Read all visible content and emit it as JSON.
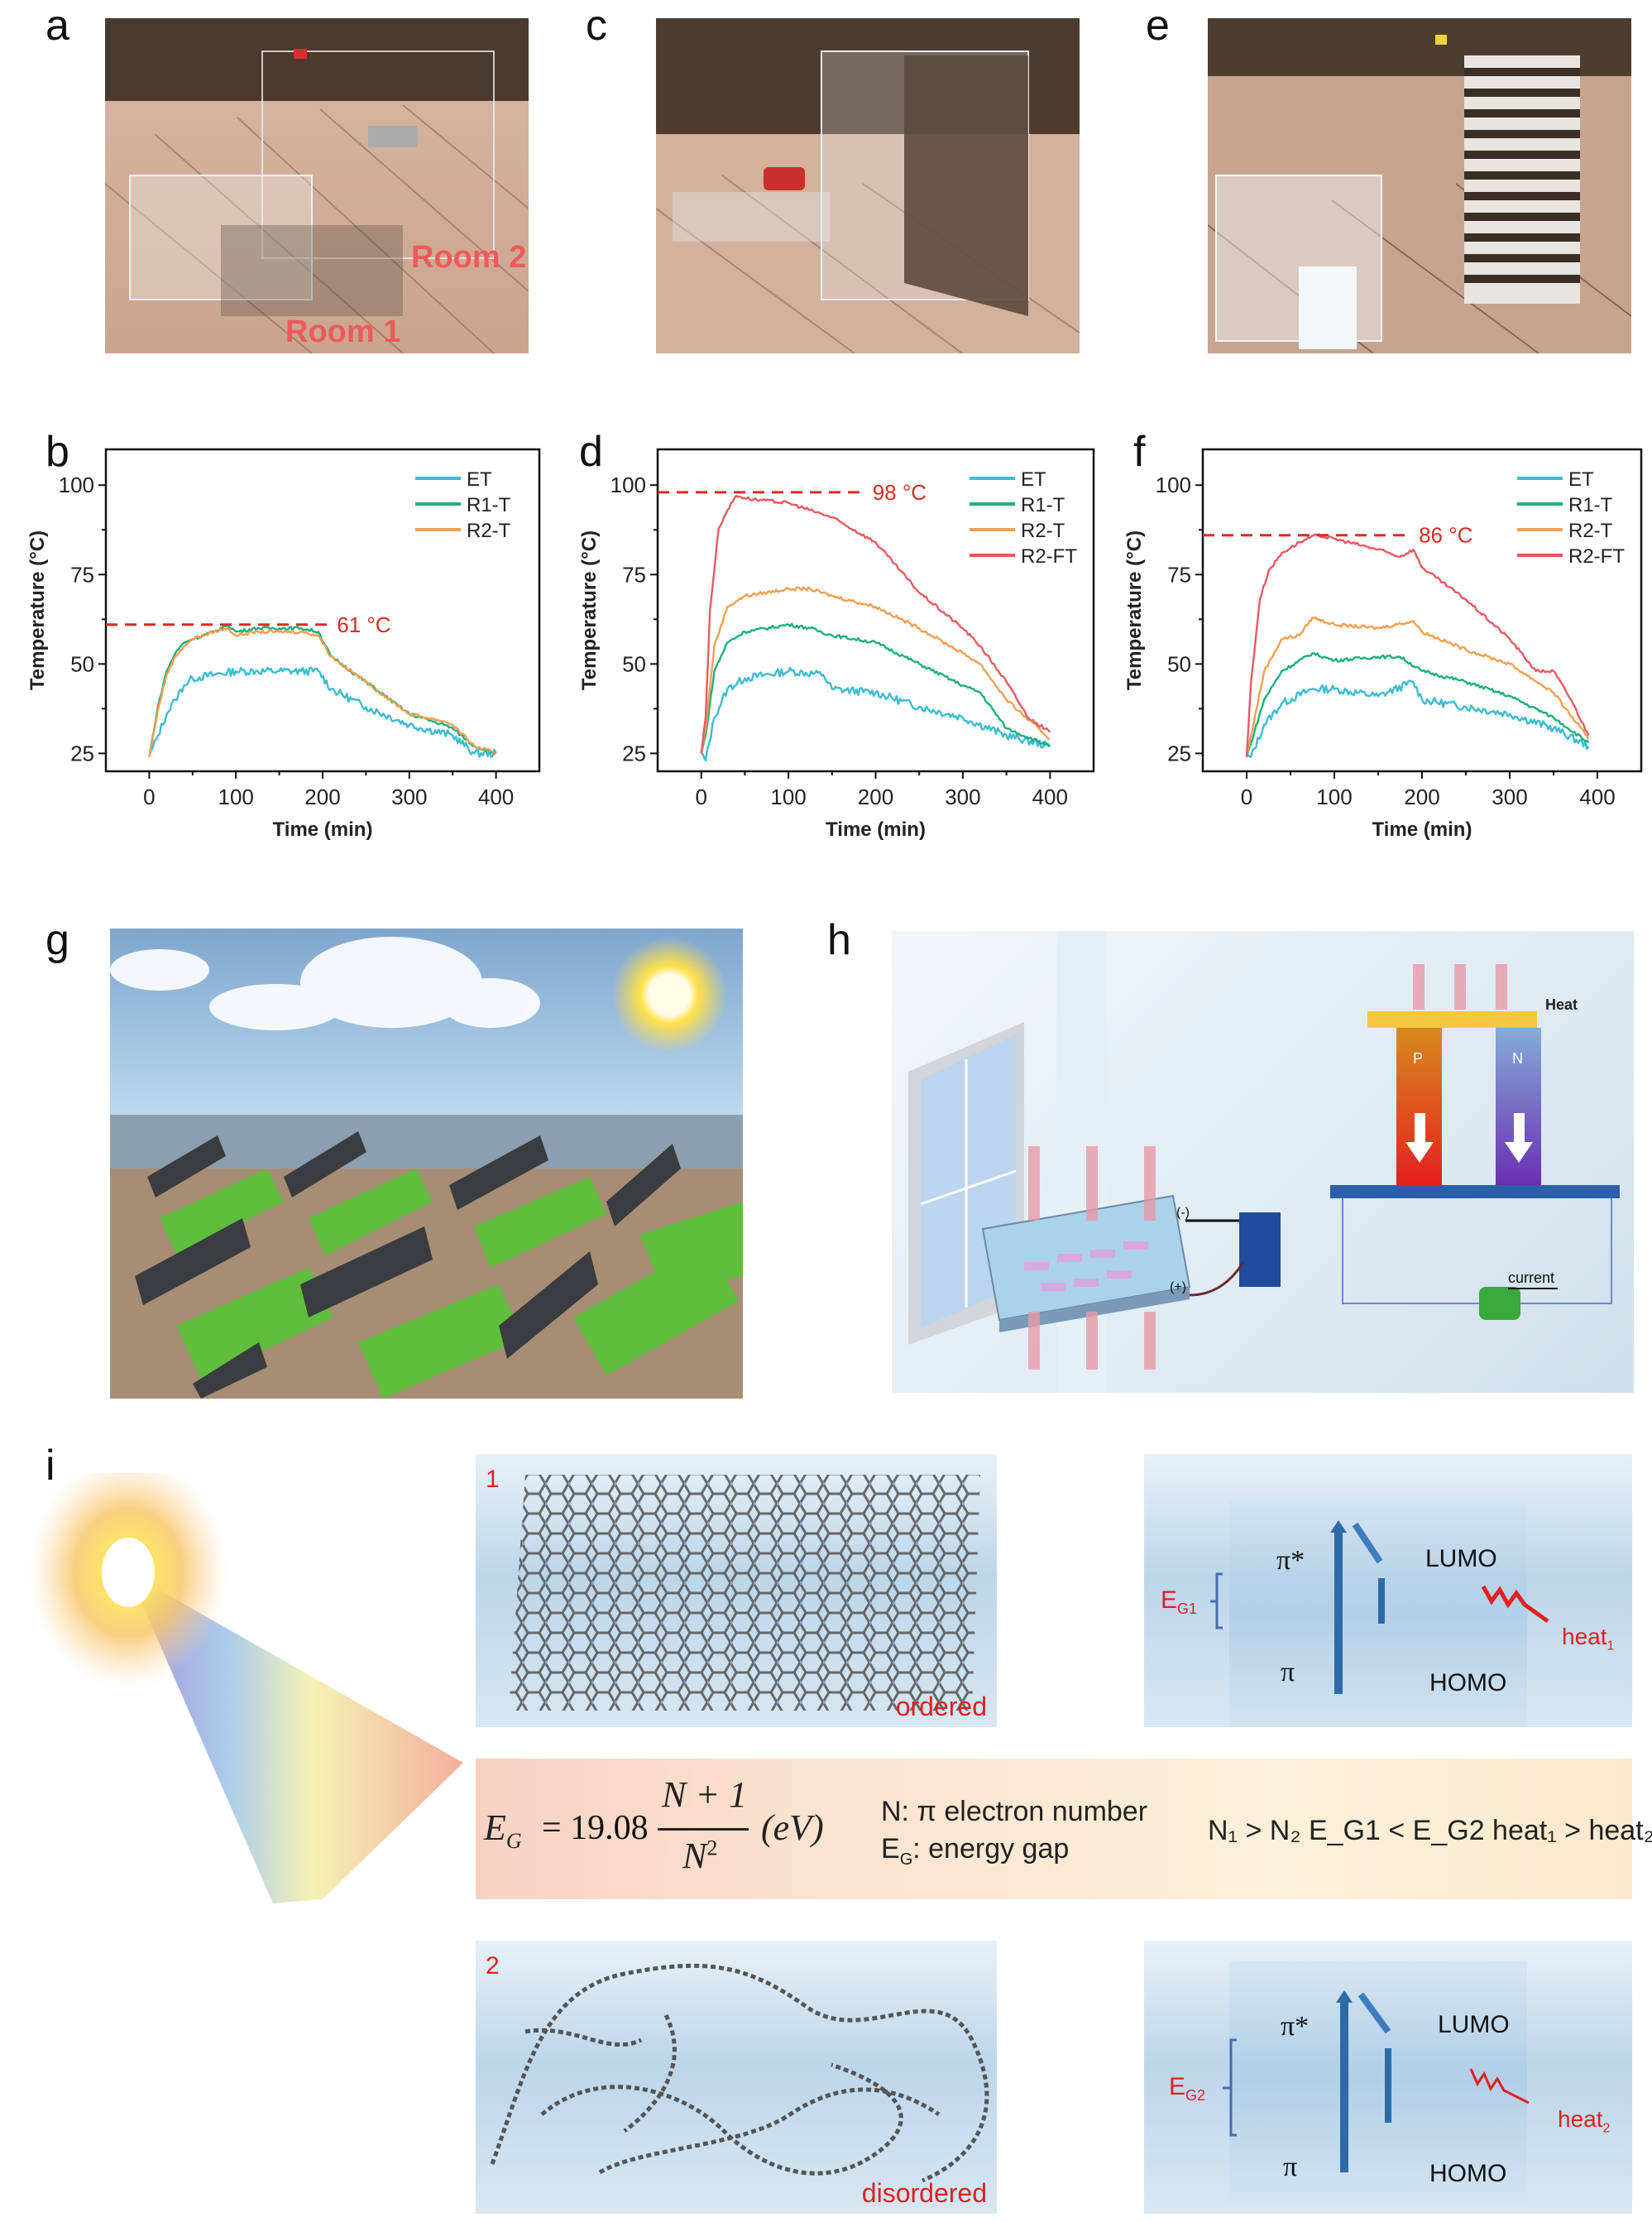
{
  "panels": {
    "a": {
      "label": "a",
      "room1": "Room 1",
      "room2": "Room 2"
    },
    "c": {
      "label": "c"
    },
    "e": {
      "label": "e"
    },
    "b": {
      "label": "b"
    },
    "d": {
      "label": "d"
    },
    "f": {
      "label": "f"
    },
    "g": {
      "label": "g"
    },
    "h": {
      "label": "h",
      "heat": "Heat",
      "current": "current",
      "p": "P",
      "n": "N",
      "minus": "(-)",
      "plus": "(+)"
    },
    "i": {
      "label": "i",
      "struct1_num": "1",
      "struct1_tag": "ordered",
      "struct2_num": "2",
      "struct2_tag": "disordered",
      "diagram1": {
        "pi_star": "π*",
        "pi": "π",
        "lumo": "LUMO",
        "homo": "HOMO",
        "gap": "EG1",
        "gap_main": "E",
        "gap_sub": "G1",
        "heat_main": "heat",
        "heat_sub": "1"
      },
      "diagram2": {
        "pi_star": "π*",
        "pi": "π",
        "lumo": "LUMO",
        "homo": "HOMO",
        "gap_main": "E",
        "gap_sub": "G2",
        "heat_main": "heat",
        "heat_sub": "2"
      },
      "equation": {
        "lhs": "E",
        "lhs_sub": "G",
        "coef": "= 19.08",
        "numerator": "N + 1",
        "denominator": "N",
        "denominator_sup": "2",
        "unit": "(eV)",
        "def1": "N: π electron number",
        "def2_main": "E",
        "def2_sub": "G",
        "def2_rest": ": energy gap",
        "relation": "N₁ > N₂  E_G1 < E_G2  heat₁ > heat₂"
      }
    }
  },
  "chart_data": [
    {
      "id": "b",
      "type": "line",
      "title": "",
      "xlabel": "Time (min)",
      "ylabel": "Temperature (°C)",
      "xlim": [
        -50,
        450
      ],
      "ylim": [
        20,
        110
      ],
      "xticks": [
        0,
        100,
        200,
        300,
        400
      ],
      "yticks": [
        25,
        50,
        75,
        100
      ],
      "legend": "top-right",
      "annotation": {
        "text": "61 °C",
        "y": 61,
        "color": "#d92c22"
      },
      "series": [
        {
          "name": "ET",
          "color": "#3bbcd0",
          "x": [
            0,
            10,
            20,
            30,
            40,
            50,
            75,
            100,
            125,
            150,
            175,
            195,
            210,
            250,
            300,
            350,
            375,
            400
          ],
          "y": [
            24,
            30,
            36,
            40,
            44,
            46,
            47,
            48,
            48,
            48,
            48,
            48,
            43,
            38,
            33,
            30,
            25,
            25
          ]
        },
        {
          "name": "R1-T",
          "color": "#1db07a",
          "x": [
            0,
            10,
            20,
            30,
            40,
            50,
            75,
            90,
            100,
            125,
            150,
            175,
            195,
            210,
            250,
            300,
            340,
            350,
            375,
            400
          ],
          "y": [
            24,
            38,
            48,
            53,
            56,
            57,
            59,
            61,
            59,
            60,
            60,
            60,
            59,
            52,
            45,
            36,
            33,
            32,
            27,
            25
          ]
        },
        {
          "name": "R2-T",
          "color": "#f0a050",
          "x": [
            0,
            10,
            20,
            30,
            40,
            50,
            75,
            90,
            100,
            125,
            150,
            175,
            195,
            210,
            250,
            300,
            340,
            350,
            375,
            400
          ],
          "y": [
            24,
            37,
            47,
            52,
            55,
            57,
            59,
            60,
            58,
            59,
            59,
            59,
            58,
            52,
            45,
            36,
            34,
            33,
            27,
            25
          ]
        }
      ]
    },
    {
      "id": "d",
      "type": "line",
      "title": "",
      "xlabel": "Time  (min)",
      "ylabel": "Temperature  (°C)",
      "xlim": [
        -50,
        450
      ],
      "ylim": [
        20,
        110
      ],
      "xticks": [
        0,
        100,
        200,
        300,
        400
      ],
      "yticks": [
        25,
        50,
        75,
        100
      ],
      "legend": "top-right",
      "annotation": {
        "text": "98 °C",
        "y": 98,
        "color": "#d92c22"
      },
      "series": [
        {
          "name": "ET",
          "color": "#3bbcd0",
          "x": [
            0,
            5,
            15,
            30,
            50,
            100,
            140,
            150,
            200,
            250,
            300,
            350,
            400
          ],
          "y": [
            25,
            23,
            35,
            43,
            46,
            48,
            47,
            43,
            42,
            38,
            35,
            30,
            27
          ]
        },
        {
          "name": "R1-T",
          "color": "#1db07a",
          "x": [
            0,
            5,
            15,
            30,
            50,
            100,
            125,
            150,
            200,
            250,
            300,
            320,
            350,
            400
          ],
          "y": [
            25,
            30,
            48,
            56,
            59,
            61,
            60,
            58,
            56,
            50,
            44,
            42,
            32,
            27
          ]
        },
        {
          "name": "R2-T",
          "color": "#f0a050",
          "x": [
            0,
            5,
            15,
            30,
            50,
            100,
            125,
            150,
            200,
            250,
            300,
            320,
            350,
            400
          ],
          "y": [
            25,
            32,
            55,
            66,
            69,
            71,
            71,
            69,
            66,
            60,
            53,
            50,
            40,
            29
          ]
        },
        {
          "name": "R2-FT",
          "color": "#e85a60",
          "x": [
            0,
            5,
            10,
            20,
            30,
            40,
            60,
            100,
            125,
            150,
            200,
            250,
            300,
            320,
            350,
            375,
            400
          ],
          "y": [
            25,
            35,
            65,
            88,
            93,
            97,
            96,
            95,
            93,
            91,
            84,
            70,
            60,
            55,
            45,
            35,
            31
          ]
        }
      ]
    },
    {
      "id": "f",
      "type": "line",
      "title": "",
      "xlabel": "Time (min)",
      "ylabel": "Temperature (°C)",
      "xlim": [
        -50,
        450
      ],
      "ylim": [
        20,
        110
      ],
      "xticks": [
        0,
        100,
        200,
        300,
        400
      ],
      "yticks": [
        25,
        50,
        75,
        100
      ],
      "legend": "top-right",
      "annotation": {
        "text": "86 °C",
        "y": 86,
        "color": "#d92c22"
      },
      "series": [
        {
          "name": "ET",
          "color": "#3bbcd0",
          "x": [
            0,
            5,
            20,
            40,
            75,
            100,
            150,
            190,
            200,
            250,
            300,
            350,
            390
          ],
          "y": [
            24,
            24,
            33,
            39,
            43,
            43,
            41,
            45,
            40,
            38,
            36,
            32,
            27
          ]
        },
        {
          "name": "R1-T",
          "color": "#1db07a",
          "x": [
            0,
            5,
            20,
            40,
            75,
            100,
            150,
            175,
            200,
            250,
            300,
            350,
            390
          ],
          "y": [
            24,
            28,
            40,
            48,
            53,
            51,
            52,
            52,
            48,
            45,
            41,
            35,
            28
          ]
        },
        {
          "name": "R2-T",
          "color": "#f0a050",
          "x": [
            0,
            5,
            20,
            40,
            60,
            75,
            100,
            150,
            190,
            200,
            250,
            300,
            350,
            390
          ],
          "y": [
            24,
            30,
            48,
            57,
            58,
            63,
            61,
            60,
            62,
            59,
            54,
            50,
            42,
            29
          ]
        },
        {
          "name": "R2-FT",
          "color": "#e85a60",
          "x": [
            0,
            5,
            15,
            25,
            40,
            60,
            80,
            100,
            150,
            175,
            190,
            200,
            250,
            300,
            330,
            350,
            370,
            390
          ],
          "y": [
            24,
            45,
            68,
            76,
            81,
            84,
            86,
            85,
            82,
            80,
            82,
            77,
            68,
            57,
            48,
            48,
            40,
            30
          ]
        }
      ]
    }
  ]
}
